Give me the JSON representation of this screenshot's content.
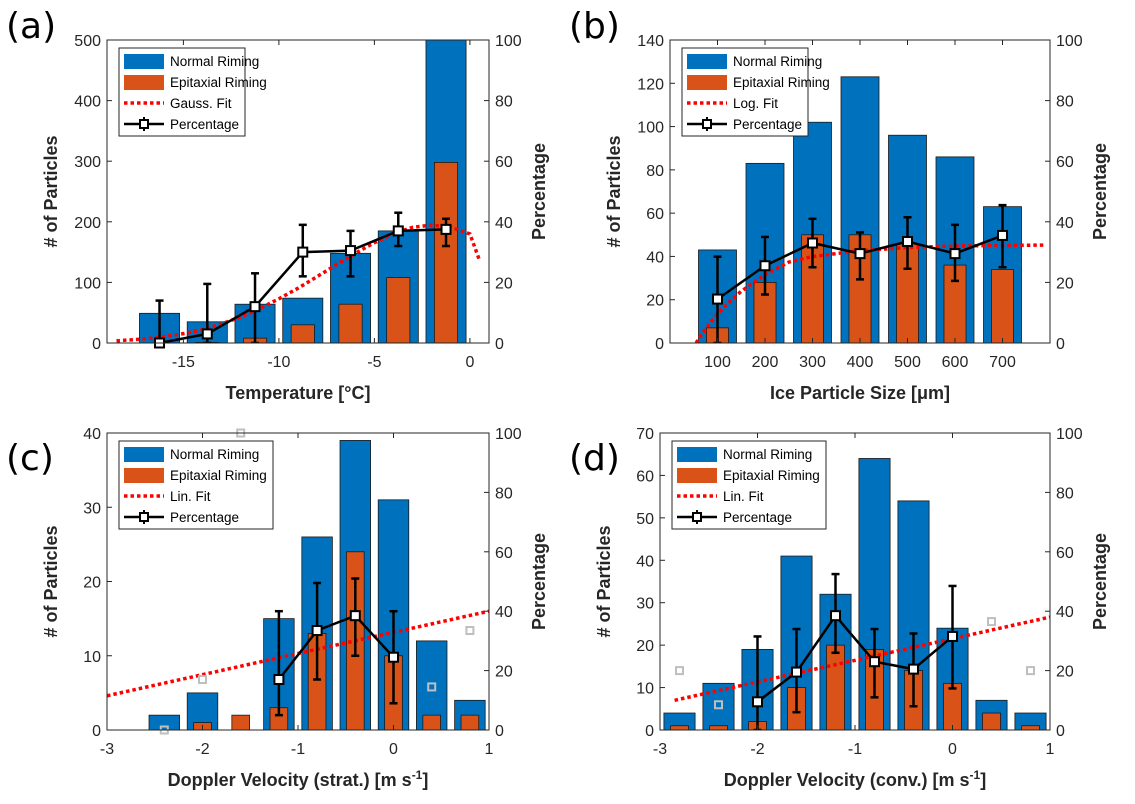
{
  "colors": {
    "normal": "#0072BD",
    "epitaxial": "#D95319",
    "fit": "#FF0000",
    "percentage": "#000000",
    "outlier": "#BFBFBF"
  },
  "chart_data": [
    {
      "panel": "(a)",
      "type": "bar",
      "xlabel": "Temperature [°C]",
      "ylabel": "# of Particles",
      "ylabel2": "Percentage",
      "xlim": [
        -19,
        1
      ],
      "ylim": [
        0,
        500
      ],
      "y2lim": [
        0,
        100
      ],
      "xticks": [
        -15,
        -10,
        -5,
        0
      ],
      "xtick_labels": [
        "-15",
        "-10",
        "-5",
        "0"
      ],
      "yticks": [
        0,
        100,
        200,
        300,
        400,
        500
      ],
      "ytick_labels": [
        "0",
        "100",
        "200",
        "300",
        "400",
        "500"
      ],
      "y2ticks": [
        0,
        20,
        40,
        60,
        80,
        100
      ],
      "y2tick_labels": [
        "0",
        "20",
        "40",
        "60",
        "80",
        "100"
      ],
      "bar_width": 2.1,
      "legend": [
        "Normal Riming",
        "Epitaxial Riming",
        "Gauss. Fit",
        "Percentage"
      ],
      "x": [
        -16.25,
        -13.75,
        -11.25,
        -8.75,
        -6.25,
        -3.75,
        -1.25
      ],
      "series": [
        {
          "name": "Normal Riming",
          "values": [
            49,
            35,
            64,
            74,
            148,
            185,
            500
          ]
        },
        {
          "name": "Epitaxial Riming",
          "values": [
            0,
            1,
            8,
            30,
            64,
            108,
            298
          ]
        }
      ],
      "percentage": {
        "x": [
          -16.25,
          -13.75,
          -11.25,
          -8.75,
          -6.25,
          -3.75,
          -1.25
        ],
        "y": [
          0,
          3,
          12,
          30,
          30.5,
          37,
          37.5
        ],
        "lo": [
          0,
          0,
          0,
          22,
          22,
          32,
          32
        ],
        "hi": [
          14,
          19.5,
          23,
          39,
          37,
          43,
          41
        ]
      },
      "fit": {
        "x": [
          -18.5,
          -17,
          -16,
          -15,
          -14,
          -13,
          -12,
          -11,
          -10,
          -9,
          -8,
          -7,
          -6,
          -5,
          -4,
          -3,
          -2,
          -1,
          0,
          0.5
        ],
        "y": [
          0.7,
          1.4,
          2.1,
          3.1,
          4.4,
          6.3,
          8.6,
          11.4,
          14.6,
          18.1,
          21.9,
          25.8,
          29.6,
          33.1,
          36.1,
          38.2,
          38.9,
          38.2,
          36.0,
          27.4
        ]
      },
      "outliers": []
    },
    {
      "panel": "(b)",
      "type": "bar",
      "xlabel": "Ice Particle Size [μm]",
      "ylabel": "# of Particles",
      "ylabel2": "Percentage",
      "xlim": [
        0,
        800
      ],
      "ylim": [
        0,
        140
      ],
      "y2lim": [
        0,
        100
      ],
      "xticks": [
        100,
        200,
        300,
        400,
        500,
        600,
        700
      ],
      "xtick_labels": [
        "100",
        "200",
        "300",
        "400",
        "500",
        "600",
        "700"
      ],
      "yticks": [
        0,
        20,
        40,
        60,
        80,
        100,
        120,
        140
      ],
      "ytick_labels": [
        "0",
        "20",
        "40",
        "60",
        "80",
        "100",
        "120",
        "140"
      ],
      "y2ticks": [
        0,
        20,
        40,
        60,
        80,
        100
      ],
      "y2tick_labels": [
        "0",
        "20",
        "40",
        "60",
        "80",
        "100"
      ],
      "bar_width": 80,
      "legend": [
        "Normal Riming",
        "Epitaxial Riming",
        "Log. Fit",
        "Percentage"
      ],
      "x": [
        100,
        200,
        300,
        400,
        500,
        600,
        700
      ],
      "series": [
        {
          "name": "Normal Riming",
          "values": [
            43,
            83,
            102,
            123,
            96,
            86,
            63
          ]
        },
        {
          "name": "Epitaxial Riming",
          "values": [
            7,
            28,
            50,
            50,
            46,
            36,
            34
          ]
        }
      ],
      "percentage": {
        "x": [
          100,
          200,
          300,
          400,
          500,
          600,
          700
        ],
        "y": [
          14.5,
          25.5,
          33,
          29.5,
          33.5,
          29.5,
          35.5
        ],
        "lo": [
          0,
          16,
          25,
          21,
          24.5,
          20.5,
          25
        ],
        "hi": [
          28.5,
          35,
          41,
          36.5,
          41.5,
          39,
          45.5
        ]
      },
      "fit": {
        "x": [
          55,
          70,
          85,
          100,
          120,
          150,
          200,
          250,
          300,
          400,
          500,
          600,
          700,
          790
        ],
        "y": [
          0,
          3.6,
          6.8,
          9.6,
          12.8,
          17.1,
          22.5,
          26.7,
          28.5,
          30.5,
          31.5,
          32,
          32.2,
          32.3
        ]
      },
      "outliers": []
    },
    {
      "panel": "(c)",
      "type": "bar",
      "xlabel": "Doppler Velocity (strat.) [m s-1]",
      "ylabel": "# of Particles",
      "ylabel2": "Percentage",
      "xlim": [
        -3,
        1
      ],
      "ylim": [
        0,
        40
      ],
      "y2lim": [
        0,
        100
      ],
      "xticks": [
        -3,
        -2,
        -1,
        0,
        1
      ],
      "xtick_labels": [
        "-3",
        "-2",
        "-1",
        "0",
        "1"
      ],
      "yticks": [
        0,
        10,
        20,
        30,
        40
      ],
      "ytick_labels": [
        "0",
        "10",
        "20",
        "30",
        "40"
      ],
      "y2ticks": [
        0,
        20,
        40,
        60,
        80,
        100
      ],
      "y2tick_labels": [
        "0",
        "20",
        "40",
        "60",
        "80",
        "100"
      ],
      "bar_width": 0.32,
      "legend": [
        "Normal Riming",
        "Epitaxial Riming",
        "Lin. Fit",
        "Percentage"
      ],
      "x": [
        -2.4,
        -2.0,
        -1.6,
        -1.2,
        -0.8,
        -0.4,
        0.0,
        0.4,
        0.8
      ],
      "series": [
        {
          "name": "Normal Riming",
          "values": [
            2,
            5,
            0,
            15,
            26,
            39,
            31,
            12,
            4
          ]
        },
        {
          "name": "Epitaxial Riming",
          "values": [
            0,
            1,
            2,
            3,
            13,
            24,
            10,
            2,
            2
          ]
        }
      ],
      "percentage": {
        "x": [
          -1.2,
          -0.8,
          -0.4,
          0.0
        ],
        "y": [
          17,
          33.5,
          38.5,
          24.5
        ],
        "lo": [
          5,
          17,
          25,
          9
        ],
        "hi": [
          40,
          49.5,
          51,
          40
        ]
      },
      "fit": {
        "x": [
          -3,
          1
        ],
        "y": [
          11.5,
          40
        ]
      },
      "outliers": [
        {
          "x": -2.4,
          "y": 0
        },
        {
          "x": -2.0,
          "y": 17
        },
        {
          "x": -1.6,
          "y": 100
        },
        {
          "x": 0.4,
          "y": 14.5
        },
        {
          "x": 0.8,
          "y": 33.5
        }
      ]
    },
    {
      "panel": "(d)",
      "type": "bar",
      "xlabel": "Doppler Velocity (conv.) [m s-1]",
      "ylabel": "# of Particles",
      "ylabel2": "Percentage",
      "xlim": [
        -3,
        1
      ],
      "ylim": [
        0,
        70
      ],
      "y2lim": [
        0,
        100
      ],
      "xticks": [
        -3,
        -2,
        -1,
        0,
        1
      ],
      "xtick_labels": [
        "-3",
        "-2",
        "-1",
        "0",
        "1"
      ],
      "yticks": [
        0,
        10,
        20,
        30,
        40,
        50,
        60,
        70
      ],
      "ytick_labels": [
        "0",
        "10",
        "20",
        "30",
        "40",
        "50",
        "60",
        "70"
      ],
      "y2ticks": [
        0,
        20,
        40,
        60,
        80,
        100
      ],
      "y2tick_labels": [
        "0",
        "20",
        "40",
        "60",
        "80",
        "100"
      ],
      "bar_width": 0.32,
      "legend": [
        "Normal Riming",
        "Epitaxial Riming",
        "Lin. Fit",
        "Percentage"
      ],
      "x": [
        -2.8,
        -2.4,
        -2.0,
        -1.6,
        -1.2,
        -0.8,
        -0.4,
        0.0,
        0.4,
        0.8
      ],
      "series": [
        {
          "name": "Normal Riming",
          "values": [
            4,
            11,
            19,
            41,
            32,
            64,
            54,
            24,
            7,
            4
          ]
        },
        {
          "name": "Epitaxial Riming",
          "values": [
            1,
            1,
            2,
            10,
            20,
            19,
            14,
            11,
            4,
            1
          ]
        }
      ],
      "percentage": {
        "x": [
          -2.0,
          -1.6,
          -1.2,
          -0.8,
          -0.4,
          0.0
        ],
        "y": [
          9.5,
          19.5,
          38.5,
          23,
          20.5,
          31.5
        ],
        "lo": [
          0,
          6,
          26,
          11,
          8,
          14
        ],
        "hi": [
          31.5,
          34,
          52.5,
          34,
          32.5,
          48.5
        ]
      },
      "fit": {
        "x": [
          -2.85,
          1
        ],
        "y": [
          10,
          38
        ]
      },
      "outliers": [
        {
          "x": -2.8,
          "y": 20
        },
        {
          "x": -2.4,
          "y": 8.5
        },
        {
          "x": 0.4,
          "y": 36.5
        },
        {
          "x": 0.8,
          "y": 20
        }
      ]
    }
  ]
}
